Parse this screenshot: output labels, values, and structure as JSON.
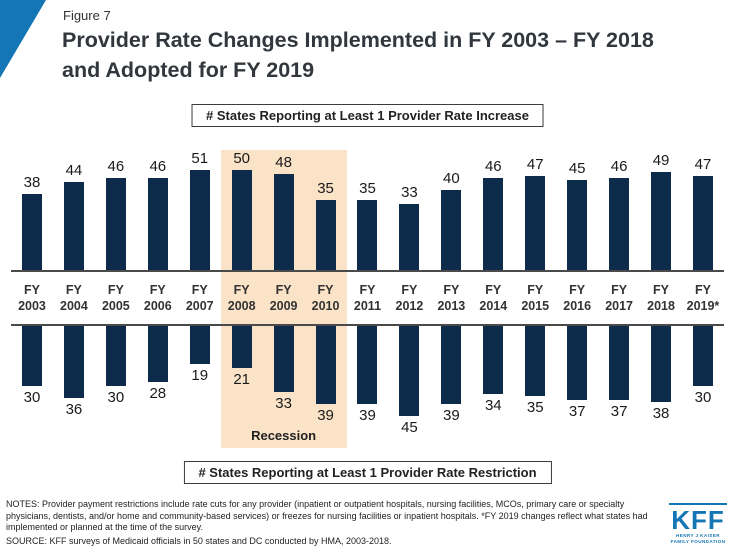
{
  "figure_label": "Figure 7",
  "title": "Provider Rate Changes Implemented in FY 2003 – FY 2018 and Adopted for FY 2019",
  "top_box_label": "# States Reporting at Least 1 Provider Rate Increase",
  "bottom_box_label": "# States Reporting at Least 1 Provider Rate Restriction",
  "recession_label": "Recession",
  "footer": {
    "notes": "NOTES: Provider payment restrictions include rate cuts for any provider (inpatient or outpatient hospitals, nursing facilities, MCOs, primary care or specialty physicians, dentists, and/or home and community-based services) or freezes for nursing facilities or inpatient hospitals. *FY 2019 changes reflect what states had implemented or planned at the time of the survey.",
    "source": "SOURCE: KFF surveys of Medicaid officials in 50 states and DC conducted by HMA, 2003-2018."
  },
  "logo": {
    "kff": "KFF",
    "line1": "HENRY J KAISER",
    "line2": "FAMILY FOUNDATION"
  },
  "colors": {
    "bar": "#0d2b4a",
    "recession_band": "#fbe3c8",
    "accent": "#1576b5"
  },
  "chart_data": {
    "type": "bar",
    "orientation": "diverging-vertical",
    "title": "Provider Rate Changes Implemented in FY 2003 – FY 2018 and Adopted for FY 2019",
    "categories": [
      "FY 2003",
      "FY 2004",
      "FY 2005",
      "FY 2006",
      "FY 2007",
      "FY 2008",
      "FY 2009",
      "FY 2010",
      "FY 2011",
      "FY 2012",
      "FY 2013",
      "FY 2014",
      "FY 2015",
      "FY 2016",
      "FY 2017",
      "FY 2018",
      "FY 2019*"
    ],
    "series": [
      {
        "name": "# States Reporting at Least 1 Provider Rate Increase",
        "direction": "up",
        "values": [
          38,
          44,
          46,
          46,
          51,
          50,
          48,
          35,
          35,
          33,
          40,
          46,
          47,
          45,
          46,
          49,
          47
        ]
      },
      {
        "name": "# States Reporting at Least 1 Provider Rate Restriction",
        "direction": "down",
        "values": [
          30,
          36,
          30,
          28,
          19,
          21,
          33,
          39,
          39,
          45,
          39,
          34,
          35,
          37,
          37,
          38,
          30
        ]
      }
    ],
    "recession_span": [
      "FY 2008",
      "FY 2009",
      "FY 2010"
    ],
    "value_labels": true,
    "axis": "no numeric axis; values labeled directly on bars",
    "pixels_per_unit": 2
  }
}
